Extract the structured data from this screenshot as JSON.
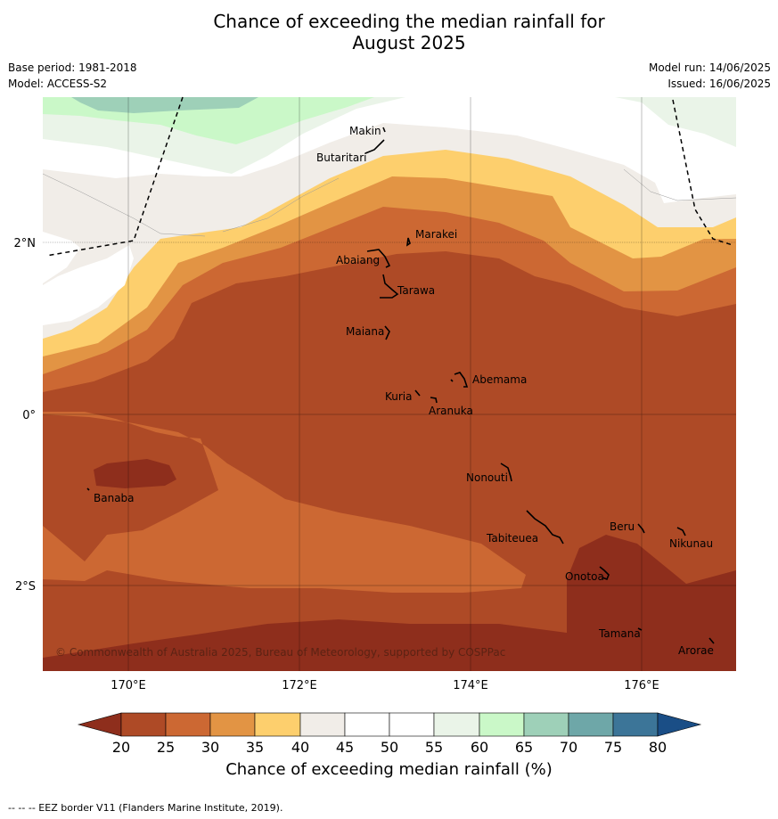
{
  "title_line1": "Chance of exceeding the median rainfall for",
  "title_line2": "August 2025",
  "base_period": "Base period: 1981-2018",
  "model": "Model: ACCESS-S2",
  "model_run": "Model run: 14/06/2025",
  "issued": "Issued: 16/06/2025",
  "copyright": "© Commonwealth of Australia 2025, Bureau of Meteorology, supported by COSPPac",
  "lon_labels": [
    "170°E",
    "172°E",
    "174°E",
    "176°E"
  ],
  "lat_labels": [
    "2°N",
    "0°",
    "2°S"
  ],
  "islands": [
    "Makin",
    "Butaritari",
    "Marakei",
    "Abaiang",
    "Tarawa",
    "Maiana",
    "Abemama",
    "Kuria",
    "Aranuka",
    "Nonouti",
    "Banaba",
    "Beru",
    "Nikunau",
    "Tabiteuea",
    "Onotoa",
    "Tamana",
    "Arorae"
  ],
  "colorbar": {
    "ticks": [
      "20",
      "25",
      "30",
      "35",
      "40",
      "45",
      "50",
      "55",
      "60",
      "65",
      "70",
      "75",
      "80"
    ],
    "colors": {
      "below_20": "#8e2e1c",
      "20_25": "#ae4a26",
      "25_30": "#cc6833",
      "30_35": "#e29444",
      "35_40": "#fdcf6d",
      "40_45": "#f1ede8",
      "45_50": "#ffffff",
      "50_55": "#ffffff",
      "55_60": "#eaf4e8",
      "60_65": "#caf8c8",
      "65_70": "#9ed0b8",
      "70_75": "#6ea7a8",
      "75_80": "#3c7598",
      "above_80": "#1a4e86"
    },
    "label": "Chance of exceeding median rainfall (%)"
  },
  "footer": "-- -- -- EEZ border V11 (Flanders Marine Institute, 2019)."
}
